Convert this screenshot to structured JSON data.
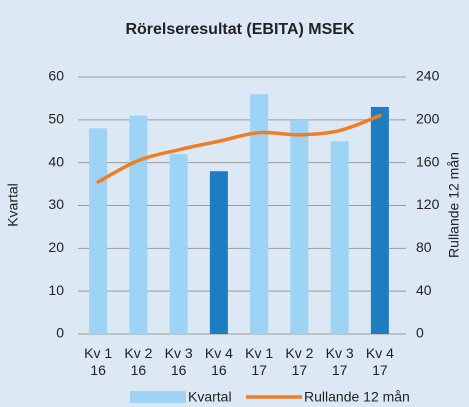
{
  "chart_data": {
    "type": "bar_line",
    "title": "Rörelseresultat (EBITA) MSEK",
    "y_label": "Kvartal",
    "y2_label": "Rullande 12 mån",
    "categories": [
      "Kv 1\n16",
      "Kv 2\n16",
      "Kv 3\n16",
      "Kv 4\n16",
      "Kv 1\n17",
      "Kv 2\n17",
      "Kv 3\n17",
      "Kv 4\n17"
    ],
    "series": [
      {
        "name": "Kvartal",
        "type": "bar",
        "color": "#9dd3f5",
        "colors": [
          "#9dd3f5",
          "#9dd3f5",
          "#9dd3f5",
          "#1e7cc0",
          "#9dd3f5",
          "#9dd3f5",
          "#9dd3f5",
          "#1e7cc0"
        ],
        "values": [
          48,
          51,
          42,
          38,
          56,
          50,
          45,
          53
        ]
      },
      {
        "name": "Rullande 12 mån",
        "type": "line",
        "axis": "y2",
        "color": "#f07d22",
        "values": [
          142,
          162,
          172,
          180,
          188,
          186,
          190,
          204
        ]
      }
    ],
    "ylim": [
      0,
      60
    ],
    "yticks": [
      0,
      10,
      20,
      30,
      40,
      50,
      60
    ],
    "y2lim": [
      0,
      240
    ],
    "y2ticks": [
      0,
      40,
      80,
      120,
      160,
      200,
      240
    ],
    "grid": true
  }
}
